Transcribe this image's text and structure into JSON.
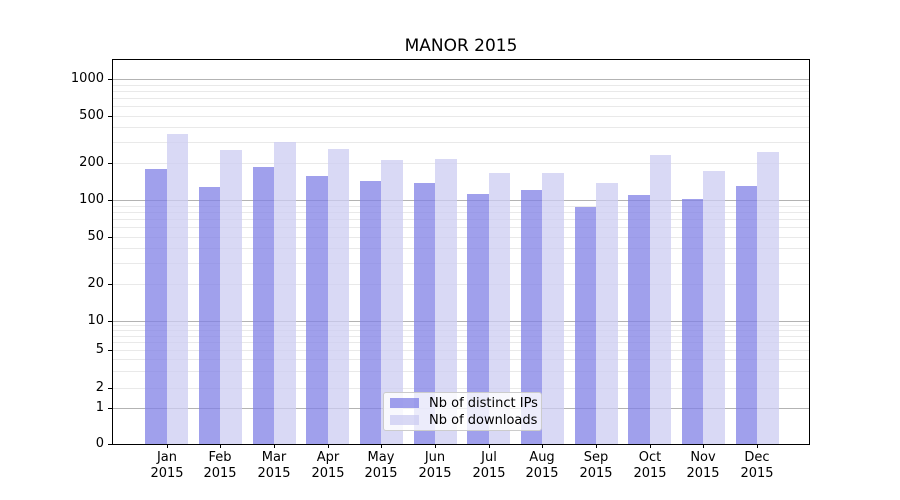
{
  "chart_data": {
    "type": "bar",
    "title": "MANOR 2015",
    "categories": [
      "Jan 2015",
      "Feb 2015",
      "Mar 2015",
      "Apr 2015",
      "May 2015",
      "Jun 2015",
      "Jul 2015",
      "Aug 2015",
      "Sep 2015",
      "Oct 2015",
      "Nov 2015",
      "Dec 2015"
    ],
    "series": [
      {
        "name": "Nb of distinct IPs",
        "color": "rgba(128,128,230,0.75)",
        "color_hex_on_white": "#a0a0ec",
        "values": [
          179,
          128,
          186,
          158,
          143,
          137,
          111,
          120,
          87,
          110,
          102,
          130
        ]
      },
      {
        "name": "Nb of downloads",
        "color": "rgba(204,204,242,0.75)",
        "color_hex_on_white": "#d9d9f5",
        "values": [
          354,
          258,
          300,
          265,
          212,
          218,
          166,
          165,
          138,
          234,
          172,
          249
        ]
      }
    ],
    "xlabel": "",
    "ylabel": "",
    "y_axis": {
      "scale": "symlog",
      "ticks": [
        0,
        1,
        2,
        5,
        10,
        20,
        50,
        100,
        200,
        500,
        1000
      ],
      "top_value": 1400
    },
    "grid": {
      "orientation": "horizontal",
      "major_color": "#b3b3b3",
      "minor_color": "#e9e9e9",
      "minor_on": true
    },
    "legend": {
      "position": "inside-bottom-center",
      "frame_color": "#cccccc"
    },
    "spine_color": "#000000",
    "background_color": "#ffffff"
  }
}
